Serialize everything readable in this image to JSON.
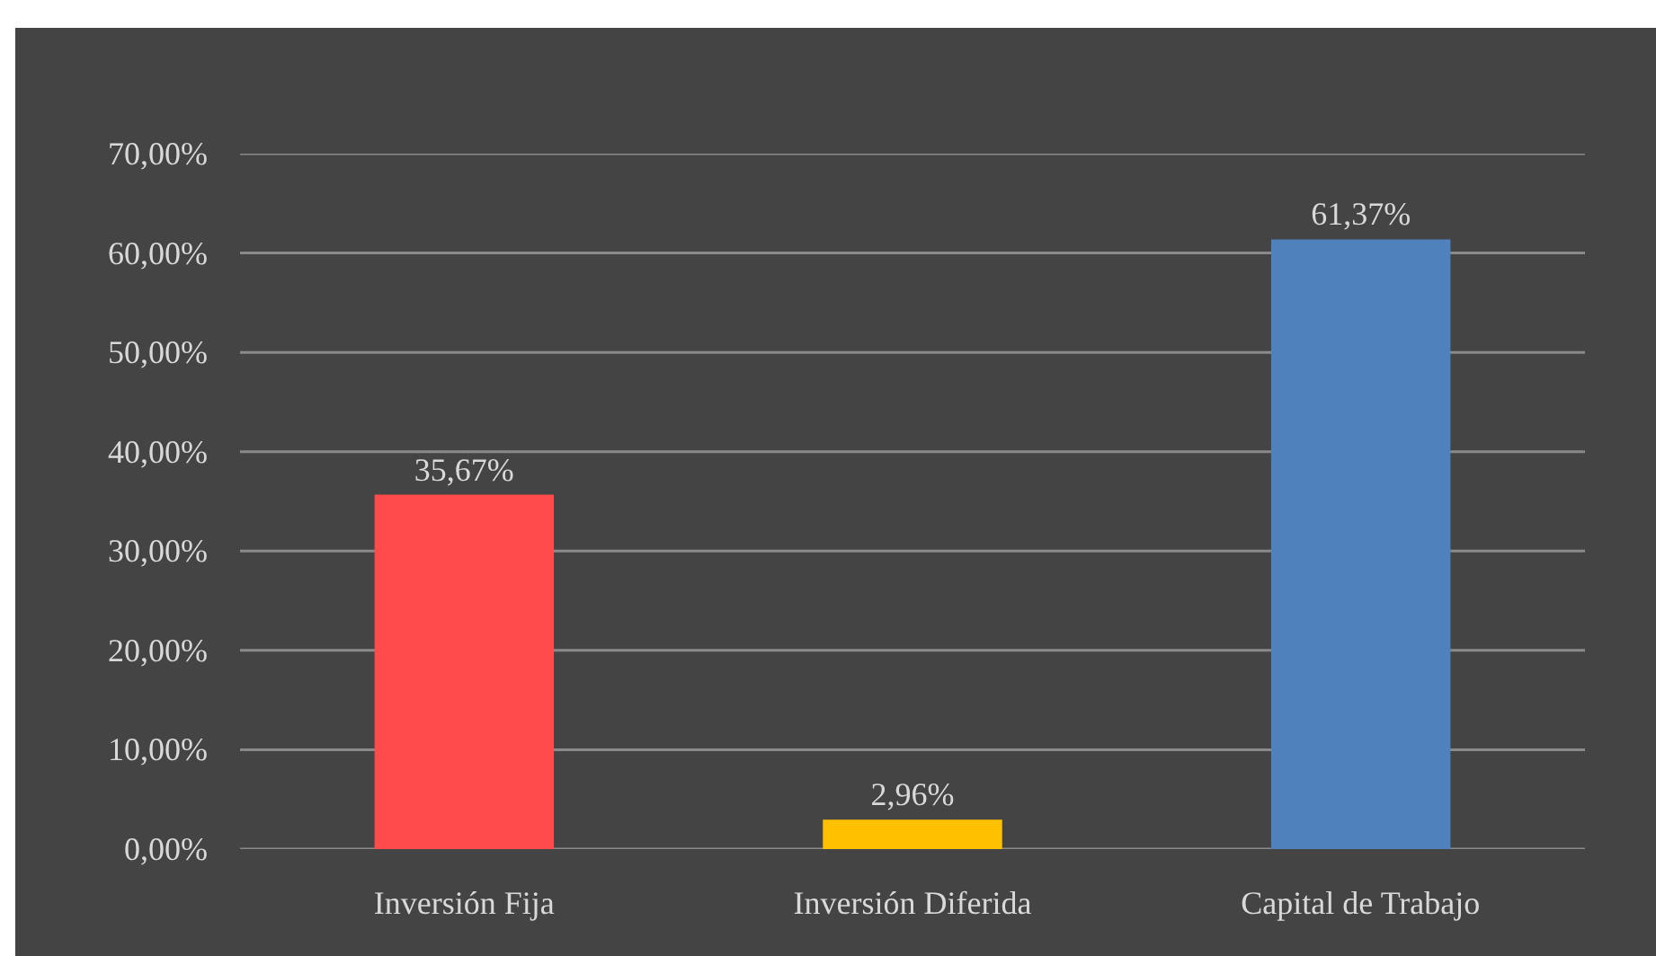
{
  "chart_data": {
    "type": "bar",
    "categories": [
      "Inversión Fija",
      "Inversión Diferida",
      "Capital de Trabajo"
    ],
    "values": [
      35.67,
      2.96,
      61.37
    ],
    "colors": [
      "#ff4b4b",
      "#ffc000",
      "#4f81bd"
    ],
    "value_labels": [
      "35,67%",
      "2,96%",
      "61,37%"
    ],
    "ylim": [
      0,
      70
    ],
    "yticks": [
      {
        "value": 0,
        "label": "0,00%"
      },
      {
        "value": 10,
        "label": "10,00%"
      },
      {
        "value": 20,
        "label": "20,00%"
      },
      {
        "value": 30,
        "label": "30,00%"
      },
      {
        "value": 40,
        "label": "40,00%"
      },
      {
        "value": 50,
        "label": "50,00%"
      },
      {
        "value": 60,
        "label": "60,00%"
      },
      {
        "value": 70,
        "label": "70,00%"
      }
    ],
    "grid": "y"
  }
}
